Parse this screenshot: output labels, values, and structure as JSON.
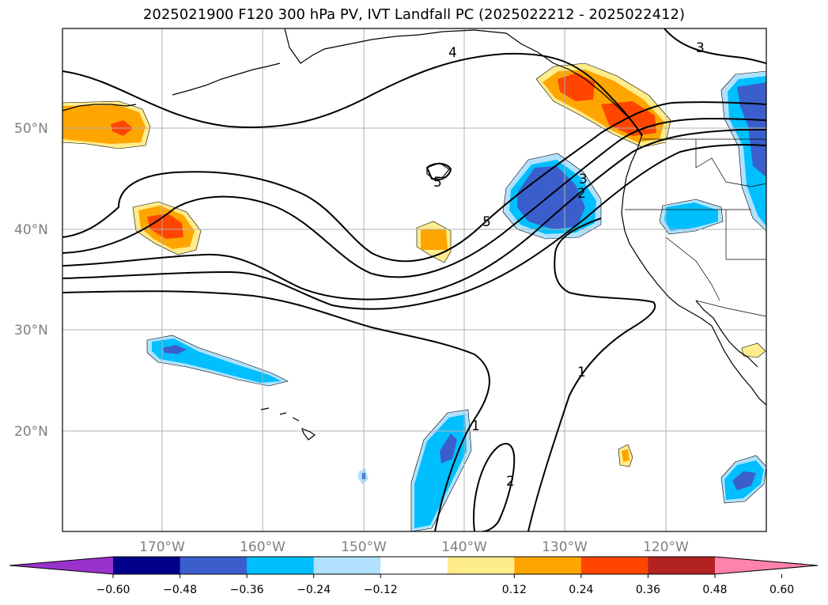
{
  "title": "2025021900 F120 300 hPa PV, IVT Landfall PC (2025022212 - 2025022412)",
  "lat_labels": [
    "50°N",
    "40°N",
    "30°N",
    "20°N"
  ],
  "lon_labels": [
    "170°W",
    "160°W",
    "150°W",
    "140°W",
    "130°W",
    "120°W"
  ],
  "contour_labels": [
    "4",
    "3",
    "3",
    "2",
    "5",
    "1",
    "1",
    "2",
    "5"
  ],
  "colorbar": {
    "tick_labels": [
      "−0.60",
      "−0.48",
      "−0.36",
      "−0.24",
      "−0.12",
      "0.12",
      "0.24",
      "0.36",
      "0.48",
      "0.60"
    ],
    "colors": [
      "#9932cc",
      "#00008b",
      "#3a5fcd",
      "#00bfff",
      "#b0e2ff",
      "#ffffff",
      "#ffec8b",
      "#ffa500",
      "#ff4500",
      "#b22222",
      "#ff82ab"
    ]
  },
  "shading_colors": {
    "neg1": "#b0e2ff",
    "neg2": "#00bfff",
    "neg3": "#3a5fcd",
    "pos1": "#ffec8b",
    "pos2": "#ffa500",
    "pos3": "#ff4500"
  }
}
